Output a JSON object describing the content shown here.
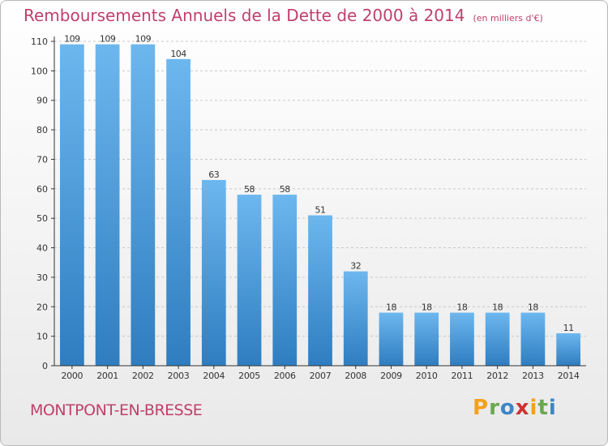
{
  "chart_data": {
    "type": "bar",
    "title": "Remboursements Annuels de la Dette de 2000 à 2014",
    "unit_note": "(en milliers d'€)",
    "categories": [
      "2000",
      "2001",
      "2002",
      "2003",
      "2004",
      "2005",
      "2006",
      "2007",
      "2008",
      "2009",
      "2010",
      "2011",
      "2012",
      "2013",
      "2014"
    ],
    "values": [
      109,
      109,
      109,
      104,
      63,
      58,
      58,
      51,
      32,
      18,
      18,
      18,
      18,
      18,
      11
    ],
    "ylim": [
      0,
      110
    ],
    "yticks": [
      0,
      10,
      20,
      30,
      40,
      50,
      60,
      70,
      80,
      90,
      100,
      110
    ],
    "grid": true,
    "bar_color_top": "#6db7ef",
    "bar_color_bottom": "#2f7dc0"
  },
  "commune": "MONTPONT-EN-BRESSE",
  "logo": {
    "text": "Proxiti",
    "colors": [
      "#f2a11f",
      "#6aa84f",
      "#3d85c6",
      "#cc3333",
      "#f2a11f",
      "#6aa84f",
      "#3d85c6"
    ]
  }
}
